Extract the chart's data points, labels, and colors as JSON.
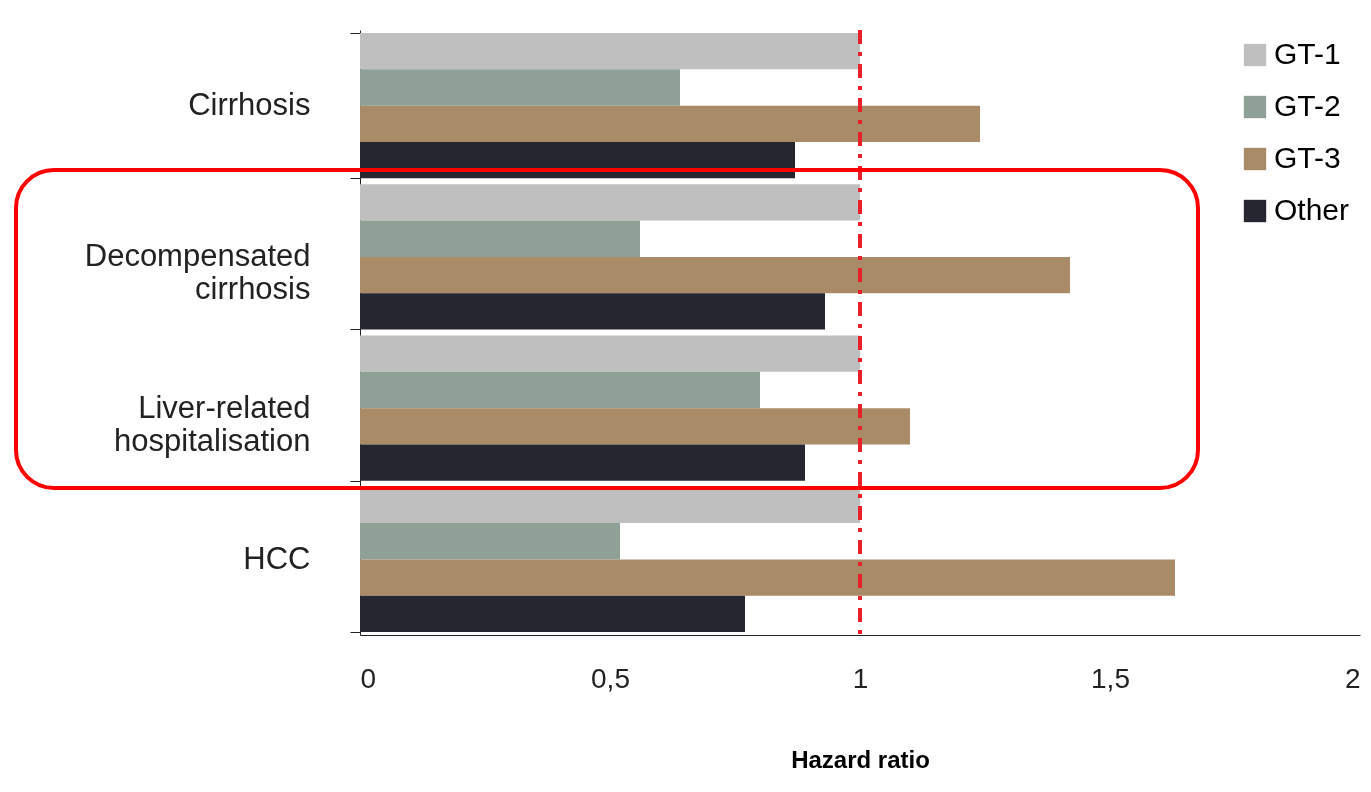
{
  "chart_data": {
    "type": "bar",
    "orientation": "horizontal",
    "xlabel": "Hazard ratio",
    "categories": [
      "Cirrhosis",
      "Decompensated cirrhosis",
      "Liver-related hospitalisation",
      "HCC"
    ],
    "series": [
      {
        "name": "GT-1",
        "color": "#bfbfbf",
        "values": [
          1.0,
          1.0,
          1.0,
          1.0
        ]
      },
      {
        "name": "GT-2",
        "color": "#8fa197",
        "values": [
          0.64,
          0.56,
          0.8,
          0.52
        ]
      },
      {
        "name": "GT-3",
        "color": "#a98b67",
        "values": [
          1.24,
          1.42,
          1.1,
          1.63
        ]
      },
      {
        "name": "Other",
        "color": "#262630",
        "values": [
          0.87,
          0.93,
          0.89,
          0.77
        ]
      }
    ],
    "xlim": [
      0,
      2
    ],
    "xticks": [
      0,
      {
        "value": 0.5,
        "label": "0,5"
      },
      1,
      {
        "value": 1.5,
        "label": "1,5"
      },
      2
    ],
    "ref_lines": [
      {
        "axis": "x",
        "value": 1,
        "color": "#e8202a",
        "line_style": "dashdot"
      }
    ],
    "grid": false,
    "legend": "top right"
  }
}
